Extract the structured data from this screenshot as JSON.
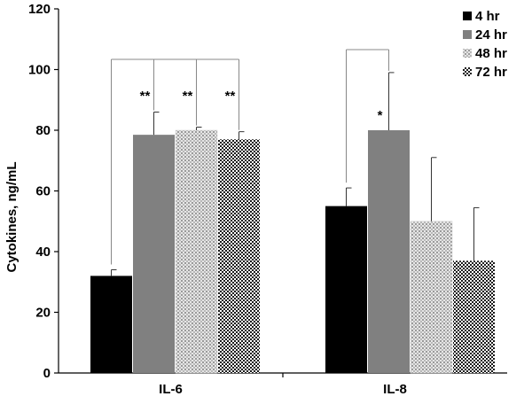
{
  "chart_data": {
    "type": "bar",
    "ylabel": "Cytokines, ng/mL",
    "ylim": [
      0,
      120
    ],
    "yticks": [
      0,
      20,
      40,
      60,
      80,
      100,
      120
    ],
    "categories": [
      "IL-6",
      "IL-8"
    ],
    "series": [
      {
        "name": "4 hr",
        "values": [
          32,
          55
        ],
        "errors": [
          2,
          6
        ],
        "color": "#000000",
        "pattern": "solid-black"
      },
      {
        "name": "24 hr",
        "values": [
          78.5,
          80
        ],
        "errors": [
          7.5,
          19
        ],
        "color": "#808080",
        "pattern": "solid-gray"
      },
      {
        "name": "48 hr",
        "values": [
          80,
          50
        ],
        "errors": [
          1,
          21
        ],
        "color": "#c8c8c8",
        "pattern": "fine-dots"
      },
      {
        "name": "72 hr",
        "values": [
          77,
          37
        ],
        "errors": [
          2.5,
          17.5
        ],
        "color": "#303030",
        "pattern": "checker"
      }
    ],
    "significance": [
      {
        "category": "IL-6",
        "series": "24 hr",
        "label": "**"
      },
      {
        "category": "IL-6",
        "series": "48 hr",
        "label": "**"
      },
      {
        "category": "IL-6",
        "series": "72 hr",
        "label": "**"
      },
      {
        "category": "IL-8",
        "series": "24 hr",
        "label": "*"
      }
    ],
    "legend": "top-right",
    "grid": false
  }
}
